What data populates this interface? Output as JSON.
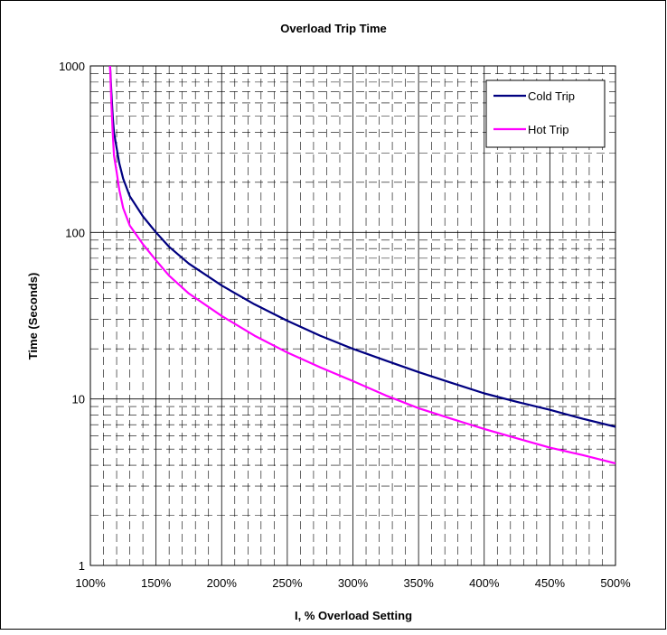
{
  "chart_data": {
    "type": "line",
    "title": "Overload  Trip Time",
    "xlabel": "I, % Overload Setting",
    "ylabel": "Time (Seconds)",
    "x_scale": "linear",
    "y_scale": "log",
    "xlim": [
      100,
      500
    ],
    "ylim": [
      1,
      1000
    ],
    "x_ticks": [
      "100%",
      "150%",
      "200%",
      "250%",
      "300%",
      "350%",
      "400%",
      "450%",
      "500%"
    ],
    "y_ticks": [
      "1",
      "10",
      "100",
      "1000"
    ],
    "grid": true,
    "legend_position": "top-right",
    "series": [
      {
        "name": "Cold Trip",
        "color": "#000080",
        "x": [
          115,
          116,
          117,
          118,
          120,
          122,
          125,
          130,
          140,
          150,
          160,
          175,
          200,
          225,
          250,
          275,
          300,
          325,
          350,
          375,
          400,
          425,
          450,
          475,
          500
        ],
        "y": [
          1000,
          700,
          500,
          400,
          320,
          260,
          210,
          165,
          125,
          100,
          82,
          65,
          48,
          37,
          29.5,
          24,
          20,
          17,
          14.5,
          12.5,
          10.8,
          9.6,
          8.6,
          7.6,
          6.8
        ]
      },
      {
        "name": "Hot Trip",
        "color": "#FF00FF",
        "x": [
          115,
          116,
          117,
          118,
          120,
          122,
          125,
          130,
          140,
          150,
          160,
          175,
          200,
          225,
          250,
          275,
          300,
          325,
          350,
          375,
          400,
          425,
          450,
          475,
          500
        ],
        "y": [
          1000,
          600,
          400,
          290,
          230,
          180,
          140,
          110,
          85,
          68,
          55,
          43,
          31.5,
          24,
          19,
          15.5,
          12.8,
          10.5,
          8.8,
          7.6,
          6.6,
          5.8,
          5.1,
          4.6,
          4.1
        ]
      }
    ]
  }
}
